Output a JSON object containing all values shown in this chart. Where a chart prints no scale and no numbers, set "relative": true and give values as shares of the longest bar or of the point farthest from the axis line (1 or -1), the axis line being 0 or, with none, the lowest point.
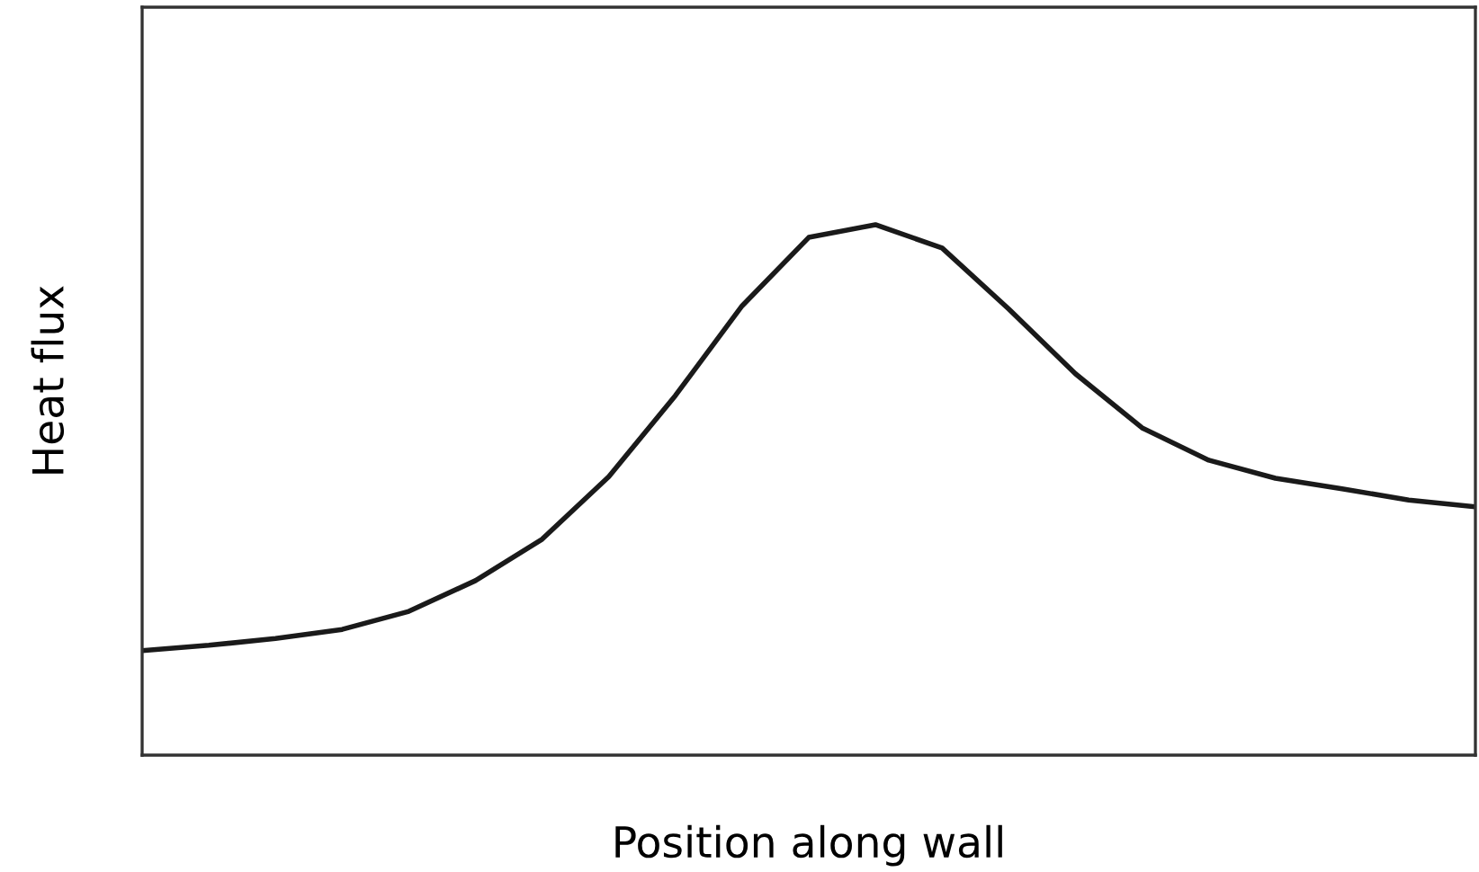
{
  "chart_data": {
    "type": "line",
    "relative": true,
    "xlabel": "Position along wall",
    "ylabel": "Heat flux",
    "color": "#1a1a1a",
    "categories": [
      null,
      null,
      null,
      null,
      null,
      null,
      null,
      null,
      null,
      null,
      null,
      null,
      null,
      null,
      null,
      null,
      null,
      null,
      null,
      null,
      null
    ],
    "values": [
      0.197,
      0.207,
      0.22,
      0.237,
      0.271,
      0.329,
      0.407,
      0.525,
      0.678,
      0.847,
      0.976,
      1.0,
      0.956,
      0.841,
      0.719,
      0.617,
      0.556,
      0.522,
      0.502,
      0.481,
      0.468
    ]
  }
}
